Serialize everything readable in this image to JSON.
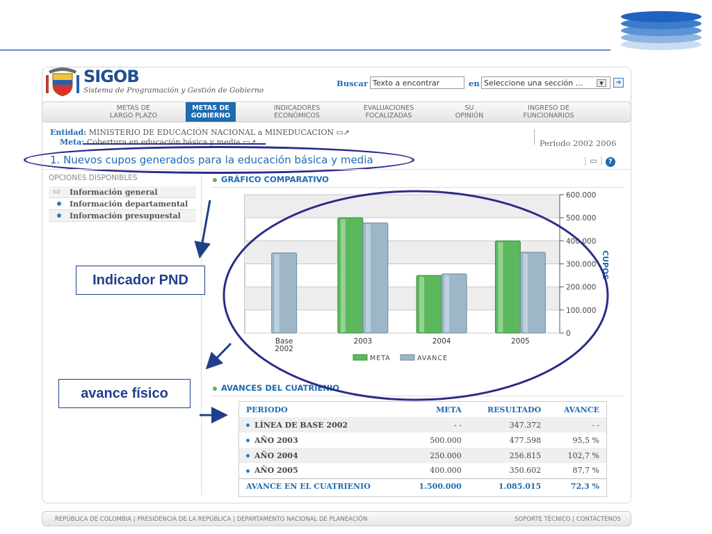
{
  "header": {
    "brand": "SIGOB",
    "brand_subtitle": "Sistema de Programación y Gestión de Gobierno",
    "search_label": "Buscar",
    "search_value": "Texto a encontrar",
    "in_label": "en",
    "section_select": "Seleccione una sección ..."
  },
  "nav": [
    {
      "label": "METAS DE\nLARGO PLAZO",
      "active": false
    },
    {
      "label": "METAS DE\nGOBIERNO",
      "active": true
    },
    {
      "label": "INDICADORES\nECONÓMICOS",
      "active": false
    },
    {
      "label": "EVALUACIONES\nFOCALIZADAS",
      "active": false
    },
    {
      "label": "SU\nOPINIÓN",
      "active": false
    },
    {
      "label": "INGRESO DE\nFUNCIONARIOS",
      "active": false
    }
  ],
  "context": {
    "entidad_label": "Entidad:",
    "entidad_value": "MINISTERIO DE EDUCACIÓN NACIONAL a MINEDUCACION",
    "meta_label": "Meta:",
    "meta_value": "Cobertura en educación básica y media",
    "periodo": "Periodo 2002 2006"
  },
  "title": "1. Nuevos cupos generados para la educación básica y media",
  "sidebar": {
    "heading": "OPCIONES DISPONIBLES",
    "items": [
      {
        "label": "Información general",
        "current": true
      },
      {
        "label": "Información departamental",
        "current": false
      },
      {
        "label": "Información presupuestal",
        "current": false
      }
    ]
  },
  "sections": {
    "chart_heading": "GRÁFICO COMPARATIVO",
    "table_heading": "AVANCES DEL CUATRIENIO"
  },
  "chart_data": {
    "type": "bar",
    "categories": [
      "Base\n2002",
      "2003",
      "2004",
      "2005"
    ],
    "series": [
      {
        "name": "META",
        "values": [
          null,
          500000,
          250000,
          400000
        ],
        "color": "#5cb85c"
      },
      {
        "name": "AVANCE",
        "values": [
          347372,
          477598,
          256815,
          350602
        ],
        "color": "#9db6c8"
      }
    ],
    "ylabel": "CUPOS",
    "ylim": [
      0,
      600000
    ],
    "yticks": [
      0,
      100000,
      200000,
      300000,
      400000,
      500000,
      600000
    ],
    "ytick_labels": [
      "0",
      "100.000",
      "200.000",
      "300.000",
      "400.000",
      "500.000",
      "600.000"
    ],
    "grid": true,
    "legend": "bottom"
  },
  "table": {
    "headers": [
      "PERIODO",
      "META",
      "RESULTADO",
      "AVANCE"
    ],
    "rows": [
      [
        "LÍNEA DE BASE 2002",
        "- -",
        "347.372",
        "- -"
      ],
      [
        "AÑO 2003",
        "500.000",
        "477.598",
        "95,5 %"
      ],
      [
        "AÑO 2004",
        "250.000",
        "256.815",
        "102,7 %"
      ],
      [
        "AÑO 2005",
        "400.000",
        "350.602",
        "87,7 %"
      ]
    ],
    "total": [
      "AVANCE EN EL CUATRIENIO",
      "1.500.000",
      "1.085.015",
      "72,3 %"
    ]
  },
  "annotations": {
    "indicador": "Indicador PND",
    "avance": "avance físico",
    "accent": "#1f3f8a"
  },
  "footer": {
    "left": "REPÚBLICA DE COLOMBIA  |  PRESIDENCIA DE LA REPÚBLICA  |  DEPARTAMENTO NACIONAL DE PLANEACIÓN",
    "right": "SOPORTE TÉCNICO  |  CONTÁCTENOS"
  },
  "colors": {
    "brand_blue": "#1e6bb0",
    "meta_green": "#5cb85c",
    "avance_blue": "#9db6c8"
  }
}
